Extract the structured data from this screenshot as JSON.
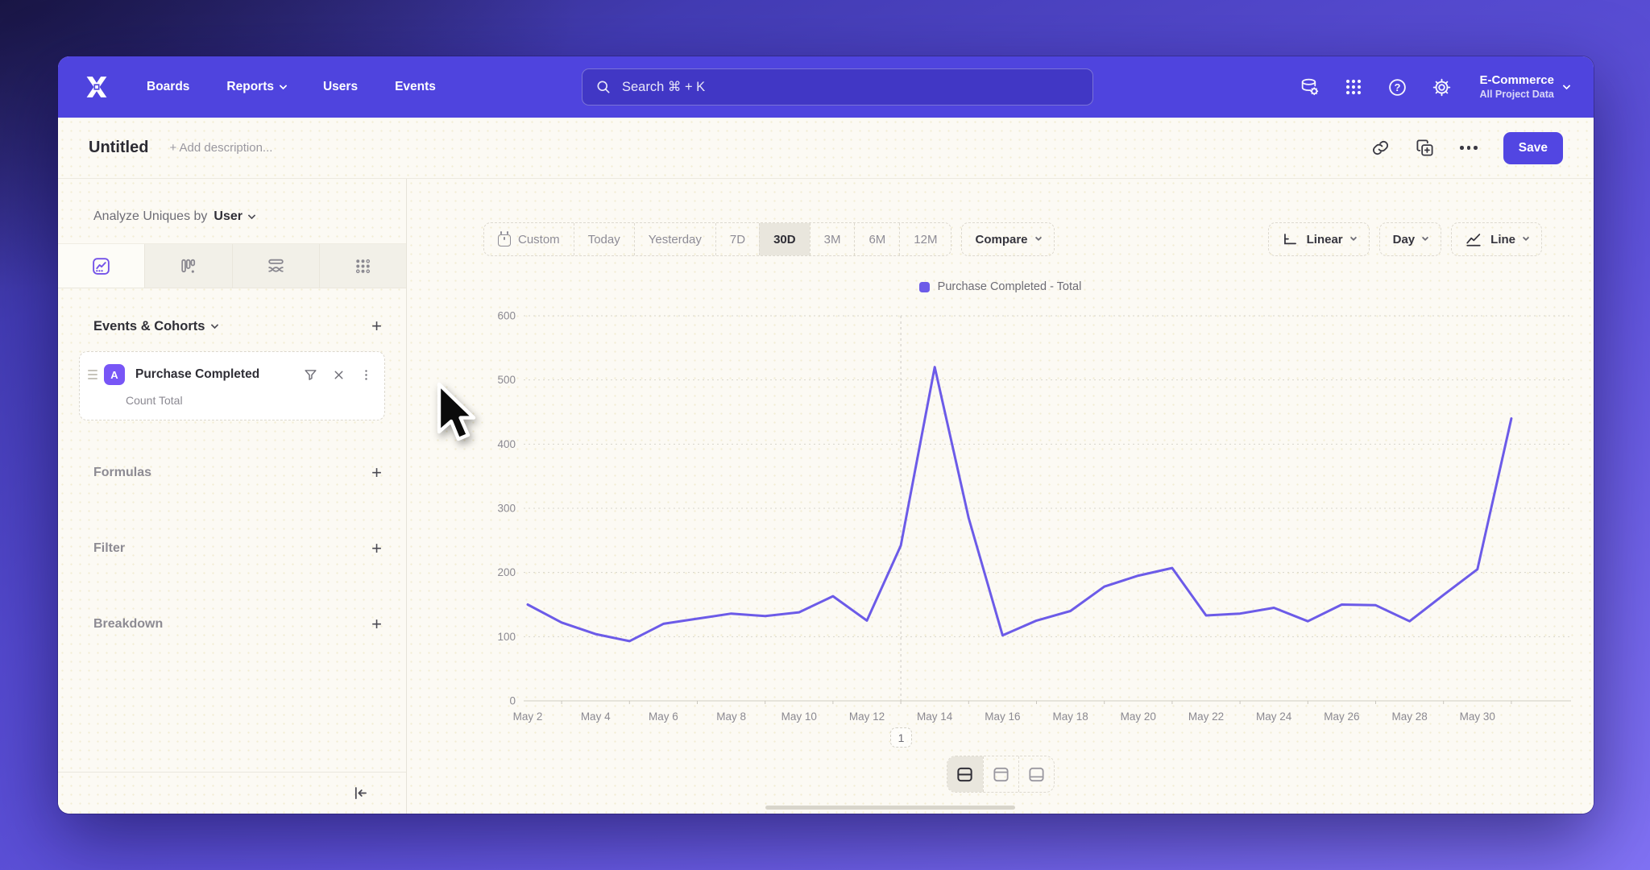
{
  "nav": {
    "items": [
      {
        "label": "Boards",
        "chevron": false
      },
      {
        "label": "Reports",
        "chevron": true
      },
      {
        "label": "Users",
        "chevron": false
      },
      {
        "label": "Events",
        "chevron": false
      }
    ],
    "search": {
      "placeholder": "Search  ⌘ + K"
    },
    "project": {
      "name": "E-Commerce",
      "subtitle": "All Project Data"
    }
  },
  "title_bar": {
    "title": "Untitled",
    "description_placeholder": "+ Add description...",
    "save_label": "Save"
  },
  "sidebar": {
    "analyze_prefix": "Analyze Uniques by",
    "analyze_value": "User",
    "events_section": "Events & Cohorts",
    "event_card": {
      "badge": "A",
      "title": "Purchase Completed",
      "subtitle": "Count Total"
    },
    "formulas_section": "Formulas",
    "filter_section": "Filter",
    "breakdown_section": "Breakdown"
  },
  "toolbar": {
    "ranges": [
      "Custom",
      "Today",
      "Yesterday",
      "7D",
      "30D",
      "3M",
      "6M",
      "12M"
    ],
    "selected_range": "30D",
    "compare_label": "Compare",
    "scale_label": "Linear",
    "interval_label": "Day",
    "chart_type_label": "Line"
  },
  "colors": {
    "nav_purple": "#4f44de",
    "save_button": "#5246e2",
    "line": "#6c5be8",
    "event_badge": "#7856f6",
    "canvas_cream": "#fcfaf4"
  },
  "chart_data": {
    "type": "line",
    "title": "",
    "xlabel": "",
    "ylabel": "",
    "ylim": [
      0,
      600
    ],
    "y_ticks": [
      0,
      100,
      200,
      300,
      400,
      500,
      600
    ],
    "grid": "horizontal-dotted",
    "legend_position": "top-center",
    "x_label_every": 2,
    "x": [
      "May 2",
      "May 3",
      "May 4",
      "May 5",
      "May 6",
      "May 7",
      "May 8",
      "May 9",
      "May 10",
      "May 11",
      "May 12",
      "May 13",
      "May 14",
      "May 15",
      "May 16",
      "May 17",
      "May 18",
      "May 19",
      "May 20",
      "May 21",
      "May 22",
      "May 23",
      "May 24",
      "May 25",
      "May 26",
      "May 27",
      "May 28",
      "May 29",
      "May 30",
      "May 31"
    ],
    "series": [
      {
        "name": "Purchase Completed - Total",
        "color": "#6c5be8",
        "values": [
          150,
          122,
          104,
          93,
          120,
          128,
          136,
          132,
          138,
          163,
          125,
          242,
          520,
          285,
          102,
          125,
          140,
          178,
          195,
          207,
          133,
          136,
          145,
          124,
          150,
          149,
          124,
          165,
          205,
          440
        ]
      }
    ],
    "annotations": [
      {
        "x": "May 13",
        "label": "1"
      }
    ]
  }
}
